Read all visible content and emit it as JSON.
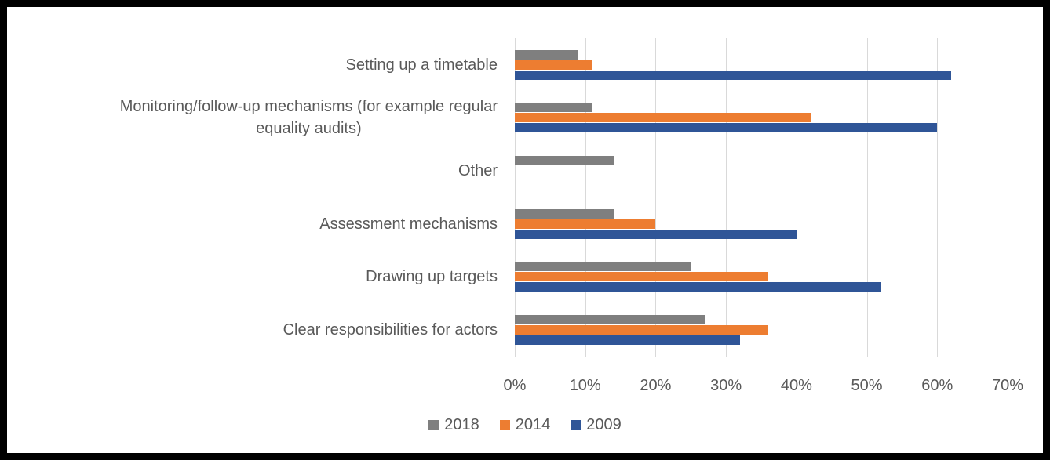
{
  "chart_data": {
    "type": "bar",
    "orientation": "horizontal",
    "title": "",
    "xlabel": "",
    "ylabel": "",
    "xlim": [
      0,
      70
    ],
    "grid": true,
    "legend_position": "bottom",
    "x_ticks": [
      "0%",
      "10%",
      "20%",
      "30%",
      "40%",
      "50%",
      "60%",
      "70%"
    ],
    "categories": [
      "Setting up a timetable",
      "Monitoring/follow-up mechanisms (for example regular\nequality audits)",
      "Other",
      "Assessment mechanisms",
      "Drawing up targets",
      "Clear responsibilities for actors"
    ],
    "series": [
      {
        "name": "2018",
        "color": "#7F7F7F",
        "values": [
          9,
          11,
          14,
          14,
          25,
          27
        ]
      },
      {
        "name": "2014",
        "color": "#ED7D31",
        "values": [
          11,
          42,
          0,
          20,
          36,
          36
        ]
      },
      {
        "name": "2009",
        "color": "#2F5597",
        "values": [
          62,
          60,
          0,
          40,
          52,
          32
        ]
      }
    ]
  },
  "colors": {
    "gridline": "#D9D9D9",
    "text": "#595959",
    "frame": "#000000",
    "background": "#FFFFFF"
  }
}
